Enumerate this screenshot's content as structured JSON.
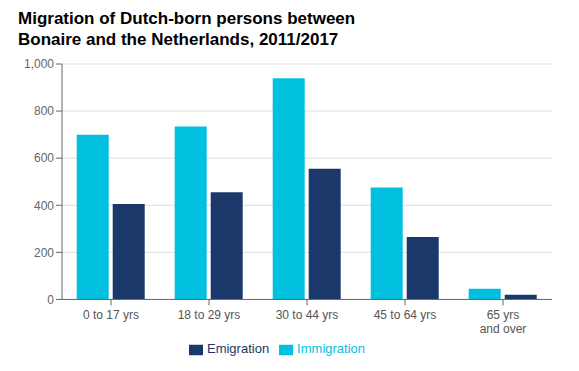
{
  "chart_data": {
    "type": "bar",
    "title": "Migration of Dutch-born persons between\nBonaire and the Netherlands, 2011/2017",
    "categories": [
      "0 to 17 yrs",
      "18 to 29 yrs",
      "30 to 44 yrs",
      "45 to 64 yrs",
      "65 yrs\nand over"
    ],
    "series": [
      {
        "name": "Immigration",
        "color": "#00BFDF",
        "values": [
          700,
          735,
          940,
          475,
          45
        ]
      },
      {
        "name": "Emigration",
        "color": "#1A3869",
        "values": [
          405,
          455,
          555,
          265,
          20
        ]
      }
    ],
    "ylim": [
      0,
      1000
    ],
    "yticks": [
      0,
      200,
      400,
      600,
      800,
      {
        "value": 1000,
        "label": "1,000"
      }
    ],
    "grid": true,
    "legend": "bottom"
  }
}
